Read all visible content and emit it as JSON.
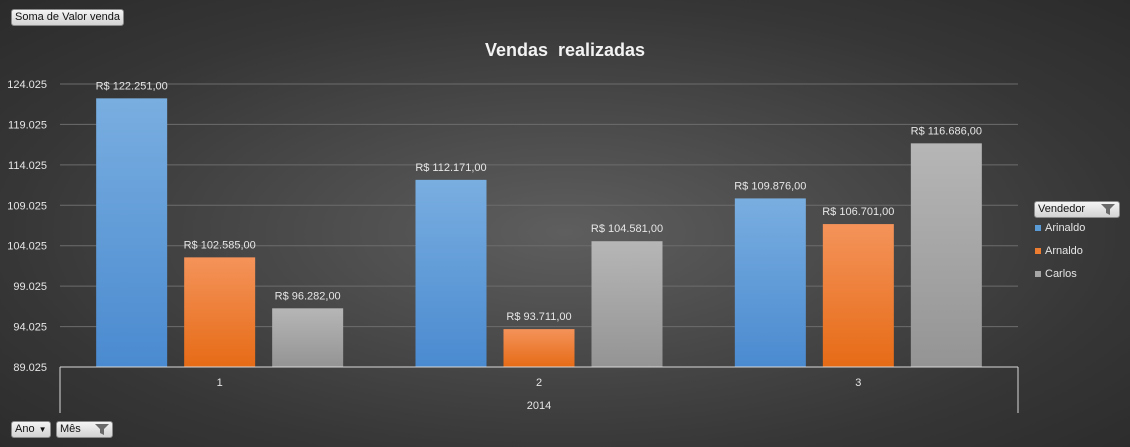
{
  "filters": {
    "values_field": "Soma de Valor venda",
    "legend_field": "Vendedor",
    "axis_fields": [
      "Ano",
      "Mês"
    ]
  },
  "colors": {
    "Arinaldo": "#5b9bd5",
    "Arnaldo": "#ed7d31",
    "Carlos": "#a5a5a5"
  },
  "chart_data": {
    "type": "bar",
    "title": "Vendas  realizadas",
    "categories": [
      "1",
      "2",
      "3"
    ],
    "group_label": "2014",
    "series": [
      {
        "name": "Arinaldo",
        "values": [
          122251,
          112171,
          109876
        ],
        "labels": [
          "R$ 122.251,00",
          "R$ 112.171,00",
          "R$ 109.876,00"
        ]
      },
      {
        "name": "Arnaldo",
        "values": [
          102585,
          93711,
          106701
        ],
        "labels": [
          "R$ 102.585,00",
          "R$ 93.711,00",
          "R$ 106.701,00"
        ]
      },
      {
        "name": "Carlos",
        "values": [
          96282,
          104581,
          116686
        ],
        "labels": [
          "R$ 96.282,00",
          "R$ 104.581,00",
          "R$ 116.686,00"
        ]
      }
    ],
    "ylim": [
      89025,
      124025
    ],
    "yticks": [
      "89.025",
      "94.025",
      "99.025",
      "104.025",
      "109.025",
      "114.025",
      "119.025",
      "124.025"
    ],
    "ytick_values": [
      89025,
      94025,
      99025,
      104025,
      109025,
      114025,
      119025,
      124025
    ],
    "grid": true,
    "legend_position": "right"
  }
}
